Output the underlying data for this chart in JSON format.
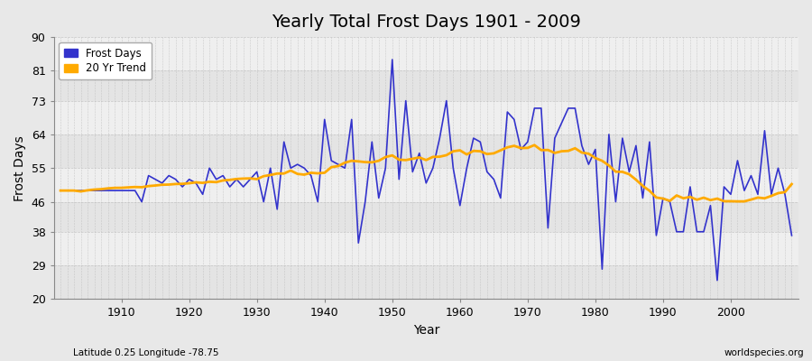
{
  "title": "Yearly Total Frost Days 1901 - 2009",
  "ylabel": "Frost Days",
  "xlabel": "Year",
  "bottom_left": "Latitude 0.25 Longitude -78.75",
  "bottom_right": "worldspecies.org",
  "ylim": [
    20,
    90
  ],
  "yticks": [
    20,
    29,
    38,
    46,
    55,
    64,
    73,
    81,
    90
  ],
  "line_color": "#3333cc",
  "trend_color": "#ffaa00",
  "fig_bg": "#e8e8e8",
  "plot_bg_light": "#efefef",
  "plot_bg_dark": "#e4e4e4",
  "grid_color": "#bbbbbb",
  "years": [
    1901,
    1902,
    1903,
    1904,
    1905,
    1906,
    1907,
    1908,
    1909,
    1910,
    1911,
    1912,
    1913,
    1914,
    1915,
    1916,
    1917,
    1918,
    1919,
    1920,
    1921,
    1922,
    1923,
    1924,
    1925,
    1926,
    1927,
    1928,
    1929,
    1930,
    1931,
    1932,
    1933,
    1934,
    1935,
    1936,
    1937,
    1938,
    1939,
    1940,
    1941,
    1942,
    1943,
    1944,
    1945,
    1946,
    1947,
    1948,
    1949,
    1950,
    1951,
    1952,
    1953,
    1954,
    1955,
    1956,
    1957,
    1958,
    1959,
    1960,
    1961,
    1962,
    1963,
    1964,
    1965,
    1966,
    1967,
    1968,
    1969,
    1970,
    1971,
    1972,
    1973,
    1974,
    1975,
    1976,
    1977,
    1978,
    1979,
    1980,
    1981,
    1982,
    1983,
    1984,
    1985,
    1986,
    1987,
    1988,
    1989,
    1990,
    1991,
    1992,
    1993,
    1994,
    1995,
    1996,
    1997,
    1998,
    1999,
    2000,
    2001,
    2002,
    2003,
    2004,
    2005,
    2006,
    2007,
    2008,
    2009
  ],
  "frost_days": [
    49,
    49,
    49,
    49,
    49,
    49,
    49,
    49,
    49,
    49,
    49,
    49,
    46,
    53,
    52,
    51,
    53,
    52,
    50,
    52,
    51,
    48,
    55,
    52,
    53,
    50,
    52,
    50,
    52,
    54,
    46,
    55,
    44,
    62,
    55,
    56,
    55,
    53,
    46,
    68,
    57,
    56,
    55,
    68,
    35,
    46,
    62,
    47,
    55,
    84,
    52,
    73,
    54,
    59,
    51,
    55,
    63,
    73,
    55,
    45,
    55,
    63,
    62,
    54,
    52,
    47,
    70,
    68,
    60,
    62,
    71,
    71,
    39,
    63,
    67,
    71,
    71,
    61,
    56,
    60,
    28,
    64,
    46,
    63,
    54,
    61,
    47,
    62,
    37,
    47,
    46,
    38,
    38,
    50,
    38,
    38,
    45,
    25,
    50,
    48,
    57,
    49,
    53,
    48,
    65,
    48,
    55,
    48,
    37
  ],
  "legend_frost": "Frost Days",
  "legend_trend": "20 Yr Trend",
  "trend_window": 20
}
